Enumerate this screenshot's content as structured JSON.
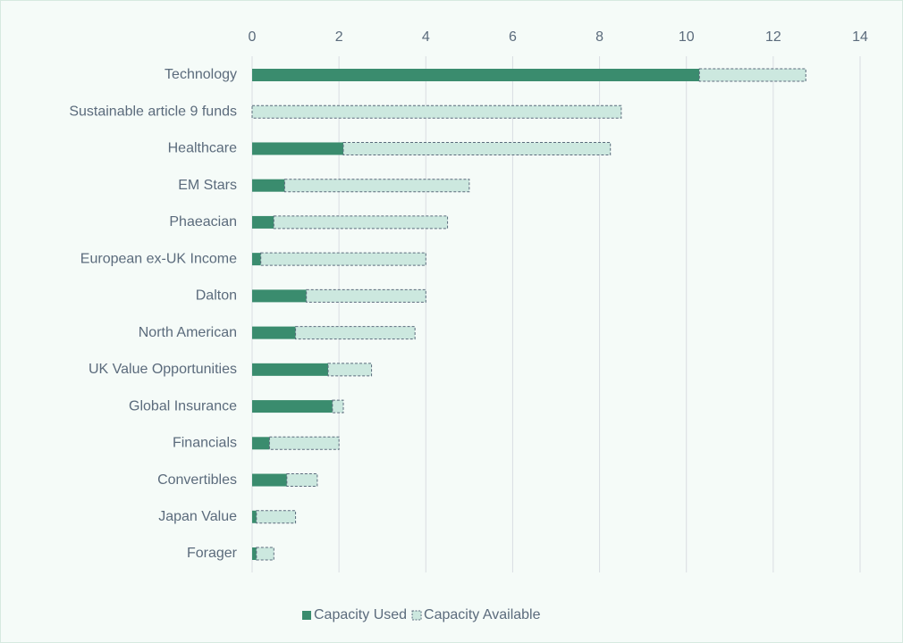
{
  "chart_data": {
    "type": "bar",
    "orientation": "horizontal",
    "stacked": true,
    "categories": [
      "Technology",
      "Sustainable article 9 funds",
      "Healthcare",
      "EM Stars",
      "Phaeacian",
      "European ex-UK Income",
      "Dalton",
      "North American",
      "UK Value Opportunities",
      "Global Insurance",
      "Financials",
      "Convertibles",
      "Japan Value",
      "Forager"
    ],
    "series": [
      {
        "name": "Capacity Used",
        "color": "#3a8c6e",
        "values": [
          10.3,
          0,
          2.1,
          0.75,
          0.5,
          0.2,
          1.25,
          1.0,
          1.75,
          1.85,
          0.4,
          0.8,
          0.1,
          0.1
        ]
      },
      {
        "name": "Capacity Available",
        "color": "#cce8df",
        "values": [
          2.45,
          8.5,
          6.15,
          4.25,
          4.0,
          3.8,
          2.75,
          2.75,
          1.0,
          0.25,
          1.6,
          0.7,
          0.9,
          0.4
        ]
      }
    ],
    "xlim": [
      0,
      14
    ],
    "xticks": [
      0,
      2,
      4,
      6,
      8,
      10,
      12,
      14
    ],
    "grid": true,
    "legend": "bottom"
  }
}
